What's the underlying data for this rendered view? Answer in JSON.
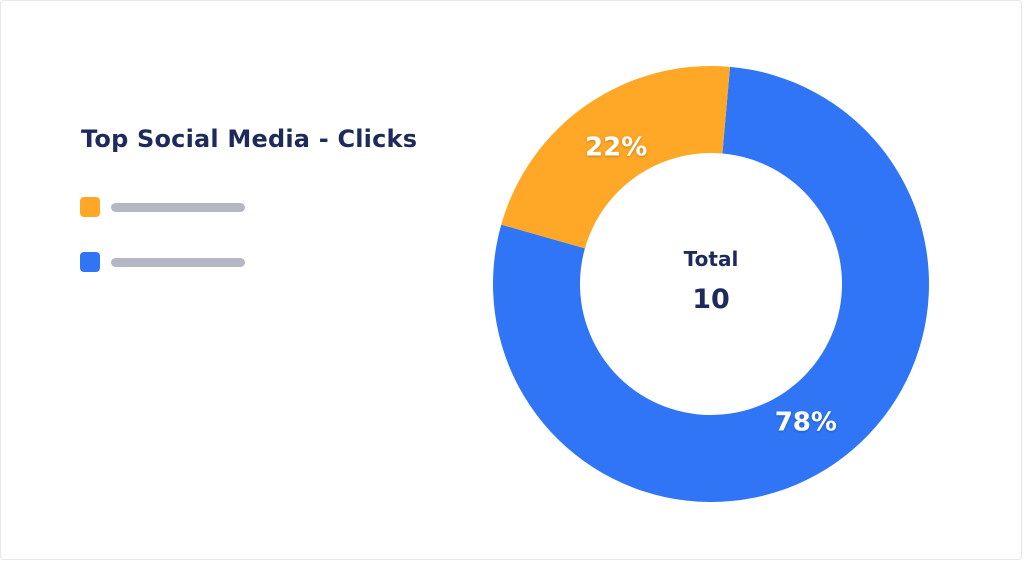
{
  "chart_data": {
    "type": "pie",
    "title": "Top Social Media - Clicks",
    "center": {
      "label": "Total",
      "value": "10"
    },
    "slices": [
      {
        "name": "",
        "value": 22,
        "label": "22%",
        "color": "#ffa726"
      },
      {
        "name": "",
        "value": 78,
        "label": "78%",
        "color": "#2f75f6"
      }
    ],
    "legend_position": "left",
    "donut": true
  }
}
